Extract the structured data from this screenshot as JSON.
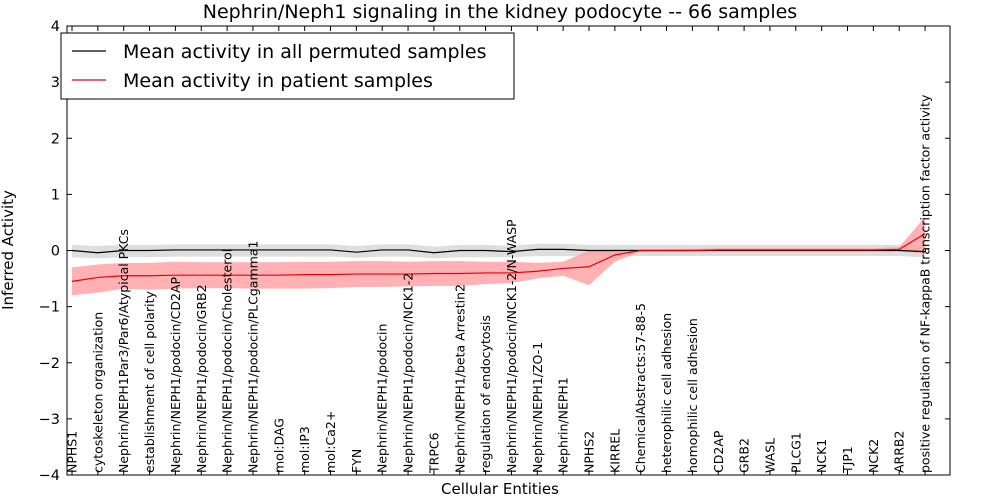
{
  "chart_data": {
    "type": "line",
    "title": "Nephrin/Neph1 signaling in the kidney podocyte -- 66 samples",
    "xlabel": "Cellular Entities",
    "ylabel": "Inferred Activity",
    "ylim": [
      -4,
      4
    ],
    "yticks": [
      "4",
      "3",
      "2",
      "1",
      "0",
      "−1",
      "−2",
      "−3",
      "−4"
    ],
    "ytick_values": [
      4,
      3,
      2,
      1,
      0,
      -1,
      -2,
      -3,
      -4
    ],
    "grid": false,
    "legend_position": "top-left",
    "categories": [
      "NPHS1",
      "cytoskeleton organization",
      "Nephrin/NEPH1Par3/Par6/Atypical PKCs",
      "establishment of cell polarity",
      "Nephrin/NEPH1/podocin/CD2AP",
      "Nephrin/NEPH1/podocin/GRB2",
      "Nephrin/NEPH1/podocin/Cholesterol",
      "Nephrin/NEPH1/podocin/PLCgamma1",
      "mol:DAG",
      "mol:IP3",
      "mol:Ca2+",
      "FYN",
      "Nephrin/NEPH1/podocin",
      "Nephrin/NEPH1/podocin/NCK1-2",
      "TRPC6",
      "Nephrin/NEPH1/beta Arrestin2",
      "regulation of endocytosis",
      "Nephrin/NEPH1/podocin/NCK1-2/N-WASP",
      "Nephrin/NEPH1/ZO-1",
      "Nephrin/NEPH1",
      "NPHS2",
      "KIRREL",
      "ChemicalAbstracts:57-88-5",
      "heterophilic cell adhesion",
      "homophilic cell adhesion",
      "CD2AP",
      "GRB2",
      "WASL",
      "PLCG1",
      "NCK1",
      "TJP1",
      "NCK2",
      "ARRB2",
      "positive regulation of NF-kappaB transcription factor activity"
    ],
    "series": [
      {
        "name": "Mean activity in all permuted samples",
        "color": "#000000",
        "band_color": "#c8c8c8",
        "values": [
          0.0,
          -0.04,
          0.0,
          0.0,
          0.01,
          0.01,
          0.01,
          0.01,
          0.01,
          0.01,
          0.01,
          -0.03,
          0.01,
          0.01,
          -0.04,
          0.0,
          0.0,
          -0.02,
          0.02,
          0.02,
          0.0,
          0.0,
          0.0,
          0.0,
          0.0,
          0.0,
          0.0,
          0.0,
          0.0,
          0.0,
          0.0,
          0.0,
          0.0,
          -0.02
        ],
        "lower": [
          -0.12,
          -0.14,
          -0.12,
          -0.12,
          -0.11,
          -0.11,
          -0.11,
          -0.11,
          -0.11,
          -0.11,
          -0.11,
          -0.13,
          -0.11,
          -0.11,
          -0.14,
          -0.12,
          -0.12,
          -0.12,
          -0.1,
          -0.1,
          -0.1,
          -0.1,
          -0.1,
          -0.1,
          -0.1,
          -0.1,
          -0.1,
          -0.1,
          -0.1,
          -0.1,
          -0.1,
          -0.1,
          -0.1,
          -0.12
        ],
        "upper": [
          0.1,
          0.08,
          0.1,
          0.1,
          0.11,
          0.11,
          0.11,
          0.11,
          0.11,
          0.11,
          0.11,
          0.08,
          0.11,
          0.11,
          0.07,
          0.1,
          0.1,
          0.08,
          0.12,
          0.12,
          0.1,
          0.1,
          0.1,
          0.1,
          0.1,
          0.1,
          0.1,
          0.1,
          0.1,
          0.1,
          0.1,
          0.1,
          0.1,
          0.08
        ]
      },
      {
        "name": "Mean activity in patient samples",
        "color": "#e8000b",
        "band_color": "#ff9ea0",
        "values": [
          -0.55,
          -0.48,
          -0.45,
          -0.45,
          -0.44,
          -0.44,
          -0.44,
          -0.44,
          -0.44,
          -0.43,
          -0.43,
          -0.42,
          -0.42,
          -0.42,
          -0.41,
          -0.41,
          -0.4,
          -0.4,
          -0.37,
          -0.32,
          -0.29,
          -0.08,
          0.0,
          0.0,
          0.0,
          0.01,
          0.01,
          0.01,
          0.01,
          0.01,
          0.01,
          0.01,
          0.02,
          0.3
        ],
        "lower": [
          -0.8,
          -0.75,
          -0.68,
          -0.7,
          -0.68,
          -0.67,
          -0.67,
          -0.68,
          -0.68,
          -0.68,
          -0.67,
          -0.65,
          -0.65,
          -0.64,
          -0.63,
          -0.63,
          -0.6,
          -0.58,
          -0.5,
          -0.45,
          -0.62,
          -0.2,
          -0.02,
          -0.02,
          -0.02,
          -0.01,
          -0.01,
          -0.01,
          -0.01,
          -0.01,
          -0.01,
          -0.01,
          -0.01,
          -0.06
        ],
        "upper": [
          -0.3,
          -0.25,
          -0.22,
          -0.22,
          -0.2,
          -0.21,
          -0.21,
          -0.21,
          -0.21,
          -0.2,
          -0.2,
          -0.19,
          -0.19,
          -0.2,
          -0.19,
          -0.19,
          -0.2,
          -0.2,
          -0.22,
          -0.2,
          0.0,
          0.02,
          0.02,
          0.02,
          0.03,
          0.04,
          0.04,
          0.04,
          0.04,
          0.04,
          0.04,
          0.04,
          0.06,
          0.6
        ]
      }
    ]
  }
}
